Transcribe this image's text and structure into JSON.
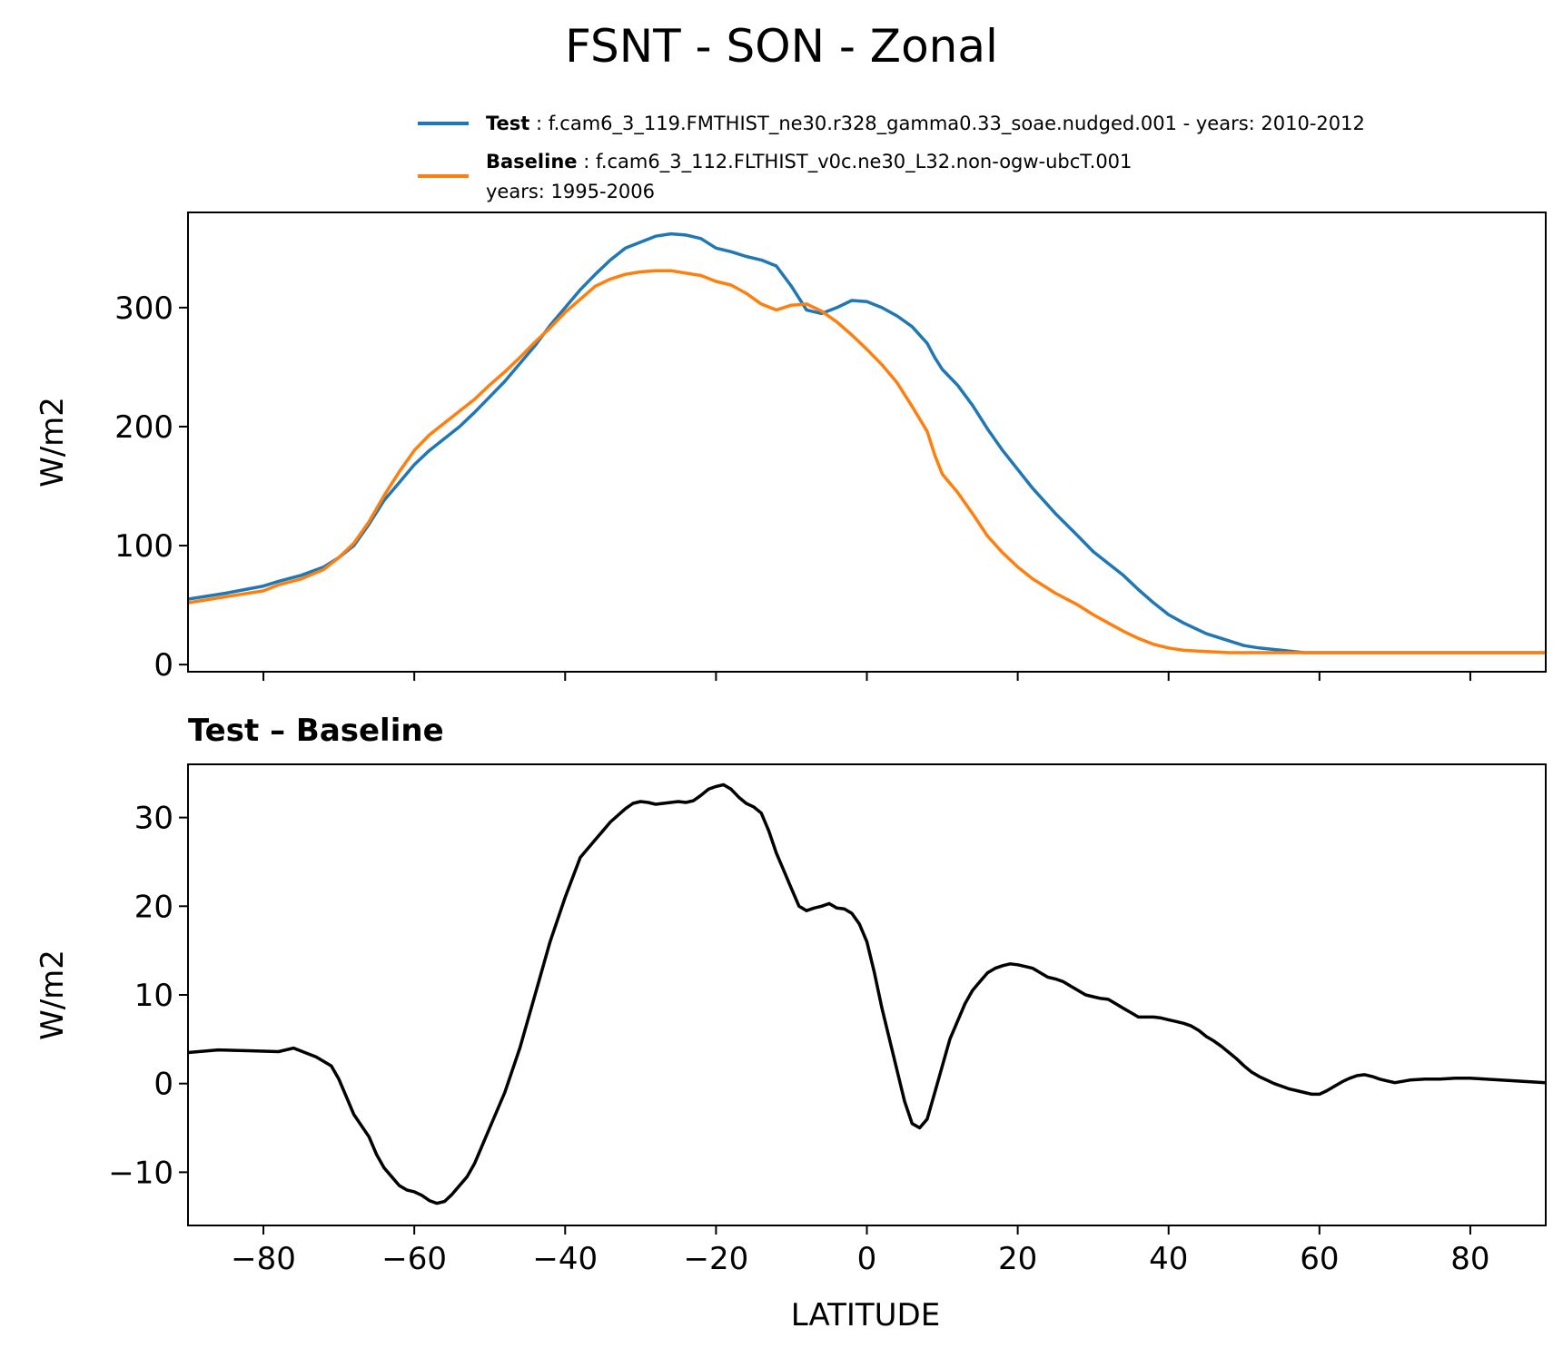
{
  "figure": {
    "title": "FSNT - SON - Zonal"
  },
  "legend": {
    "test_label": "Test",
    "test_text": ": f.cam6_3_119.FMTHIST_ne30.r328_gamma0.33_soae.nudged.001 - years: 2010-2012",
    "baseline_label": "Baseline",
    "baseline_text": ": f.cam6_3_112.FLTHIST_v0c.ne30_L32.non-ogw-ubcT.001",
    "baseline_years": "years: 1995-2006"
  },
  "colors": {
    "test": "#1f77b4",
    "baseline": "#ff7f0e",
    "diff": "#000000"
  },
  "chart_data": [
    {
      "type": "line",
      "title": "",
      "xlabel": "",
      "ylabel": "W/m2",
      "xlim": [
        -90,
        90
      ],
      "ylim": [
        -6,
        380
      ],
      "xticks": [
        -80,
        -60,
        -40,
        -20,
        0,
        20,
        40,
        60,
        80
      ],
      "show_xtick_labels": false,
      "yticks": [
        0,
        100,
        200,
        300
      ],
      "ytick_labels": [
        "0",
        "100",
        "200",
        "300"
      ],
      "series": [
        {
          "name": "Test",
          "color": "#1f77b4",
          "x": [
            -90,
            -85,
            -80,
            -78,
            -75,
            -72,
            -70,
            -68,
            -66,
            -64,
            -62,
            -60,
            -58,
            -56,
            -54,
            -52,
            -50,
            -48,
            -46,
            -44,
            -42,
            -40,
            -38,
            -36,
            -34,
            -32,
            -30,
            -28,
            -26,
            -24,
            -22,
            -20,
            -18,
            -16,
            -14,
            -12,
            -10,
            -8,
            -6,
            -4,
            -2,
            0,
            2,
            4,
            6,
            8,
            9,
            10,
            12,
            14,
            16,
            18,
            20,
            22,
            25,
            28,
            30,
            32,
            34,
            36,
            38,
            40,
            42,
            45,
            48,
            50,
            52,
            55,
            58,
            60,
            62,
            65,
            68,
            70,
            72,
            75,
            78,
            80,
            82,
            85,
            88,
            90
          ],
          "values": [
            55,
            60,
            66,
            70,
            75,
            82,
            90,
            100,
            118,
            138,
            153,
            168,
            180,
            190,
            200,
            212,
            225,
            238,
            253,
            268,
            285,
            300,
            315,
            328,
            340,
            350,
            355,
            360,
            362,
            361,
            358,
            350,
            347,
            343,
            340,
            335,
            318,
            298,
            295,
            300,
            306,
            305,
            300,
            293,
            284,
            270,
            258,
            248,
            235,
            218,
            198,
            180,
            164,
            148,
            127,
            108,
            95,
            85,
            75,
            63,
            52,
            42,
            35,
            26,
            20,
            16,
            14,
            12,
            10,
            10,
            10,
            10,
            10,
            10,
            10,
            10,
            10,
            10,
            10,
            10,
            10,
            10
          ]
        },
        {
          "name": "Baseline",
          "color": "#ff7f0e",
          "x": [
            -90,
            -85,
            -80,
            -78,
            -75,
            -72,
            -70,
            -68,
            -66,
            -64,
            -62,
            -60,
            -58,
            -56,
            -54,
            -52,
            -50,
            -48,
            -46,
            -44,
            -42,
            -40,
            -38,
            -36,
            -34,
            -32,
            -30,
            -28,
            -26,
            -24,
            -22,
            -20,
            -18,
            -16,
            -14,
            -12,
            -10,
            -8,
            -6,
            -4,
            -2,
            0,
            2,
            4,
            6,
            8,
            9,
            10,
            12,
            14,
            16,
            18,
            20,
            22,
            25,
            28,
            30,
            32,
            34,
            36,
            38,
            40,
            42,
            45,
            48,
            50,
            52,
            55,
            58,
            60,
            62,
            65,
            68,
            70,
            72,
            75,
            78,
            80,
            82,
            85,
            88,
            90
          ],
          "values": [
            52,
            57,
            62,
            67,
            72,
            80,
            90,
            102,
            120,
            142,
            162,
            180,
            193,
            203,
            213,
            223,
            235,
            246,
            258,
            271,
            283,
            296,
            307,
            318,
            324,
            328,
            330,
            331,
            331,
            329,
            327,
            322,
            319,
            312,
            303,
            298,
            302,
            303,
            297,
            288,
            277,
            265,
            252,
            237,
            217,
            196,
            176,
            160,
            145,
            127,
            108,
            94,
            82,
            72,
            60,
            50,
            42,
            35,
            28,
            22,
            17,
            14,
            12,
            11,
            10,
            10,
            10,
            10,
            10,
            10,
            10,
            10,
            10,
            10,
            10,
            10,
            10,
            10,
            10,
            10,
            10,
            10
          ]
        }
      ]
    },
    {
      "type": "line",
      "title": "Test – Baseline",
      "xlabel": "LATITUDE",
      "ylabel": "W/m2",
      "xlim": [
        -90,
        90
      ],
      "ylim": [
        -16,
        36
      ],
      "xticks": [
        -80,
        -60,
        -40,
        -20,
        0,
        20,
        40,
        60,
        80
      ],
      "xtick_labels": [
        "−80",
        "−60",
        "−40",
        "−20",
        "0",
        "20",
        "40",
        "60",
        "80"
      ],
      "show_xtick_labels": true,
      "yticks": [
        -10,
        0,
        10,
        20,
        30
      ],
      "ytick_labels": [
        "−10",
        "0",
        "10",
        "20",
        "30"
      ],
      "series": [
        {
          "name": "Test − Baseline",
          "color": "#000000",
          "x": [
            -90,
            -86,
            -82,
            -78,
            -76,
            -73,
            -71,
            -70,
            -69,
            -68,
            -66,
            -65,
            -64,
            -63,
            -62,
            -61,
            -60,
            -59,
            -58,
            -57,
            -56,
            -55,
            -54,
            -53,
            -52,
            -51,
            -50,
            -49,
            -48,
            -46,
            -44,
            -42,
            -40,
            -38,
            -36,
            -35,
            -34,
            -32,
            -31,
            -30,
            -29,
            -28,
            -27,
            -26,
            -25,
            -24,
            -23,
            -22,
            -21,
            -20,
            -19,
            -18,
            -17,
            -16,
            -15,
            -14,
            -13,
            -12,
            -11,
            -10,
            -9,
            -8,
            -7,
            -6,
            -5,
            -4,
            -3,
            -2,
            -1,
            0,
            1,
            2,
            3,
            4,
            5,
            6,
            7,
            8,
            9,
            10,
            11,
            12,
            13,
            14,
            15,
            16,
            17,
            18,
            19,
            20,
            21,
            22,
            23,
            24,
            25,
            26,
            27,
            28,
            29,
            30,
            31,
            32,
            33,
            34,
            35,
            36,
            37,
            38,
            39,
            40,
            41,
            42,
            43,
            44,
            45,
            46,
            47,
            48,
            49,
            50,
            51,
            52,
            53,
            54,
            55,
            56,
            57,
            58,
            59,
            60,
            61,
            62,
            63,
            64,
            65,
            66,
            67,
            68,
            69,
            70,
            72,
            74,
            76,
            78,
            80,
            82,
            84,
            86,
            88,
            90
          ],
          "values": [
            3.5,
            3.8,
            3.7,
            3.6,
            4.0,
            3.0,
            2.0,
            0.5,
            -1.5,
            -3.5,
            -6.0,
            -8.0,
            -9.5,
            -10.5,
            -11.5,
            -12.0,
            -12.2,
            -12.6,
            -13.2,
            -13.5,
            -13.3,
            -12.5,
            -11.5,
            -10.5,
            -9.0,
            -7.0,
            -5.0,
            -3.0,
            -1.0,
            4.0,
            10.0,
            16.0,
            21.0,
            25.5,
            27.5,
            28.5,
            29.5,
            31.0,
            31.6,
            31.8,
            31.7,
            31.5,
            31.6,
            31.7,
            31.8,
            31.7,
            31.9,
            32.5,
            33.2,
            33.5,
            33.7,
            33.2,
            32.3,
            31.6,
            31.2,
            30.5,
            28.5,
            26.0,
            24.0,
            22.0,
            20.0,
            19.5,
            19.8,
            20.0,
            20.3,
            19.8,
            19.7,
            19.2,
            18.0,
            16.0,
            12.5,
            8.5,
            5.0,
            1.5,
            -2.0,
            -4.5,
            -5.0,
            -4.0,
            -1.0,
            2.0,
            5.0,
            7.0,
            9.0,
            10.5,
            11.5,
            12.5,
            13.0,
            13.3,
            13.5,
            13.4,
            13.2,
            13.0,
            12.5,
            12.0,
            11.8,
            11.5,
            11.0,
            10.5,
            10.0,
            9.8,
            9.6,
            9.5,
            9.0,
            8.5,
            8.0,
            7.5,
            7.5,
            7.5,
            7.4,
            7.2,
            7.0,
            6.8,
            6.5,
            6.0,
            5.3,
            4.8,
            4.2,
            3.5,
            2.8,
            2.0,
            1.3,
            0.8,
            0.4,
            0.0,
            -0.3,
            -0.6,
            -0.8,
            -1.0,
            -1.2,
            -1.2,
            -0.8,
            -0.3,
            0.2,
            0.6,
            0.9,
            1.0,
            0.8,
            0.5,
            0.3,
            0.1,
            0.4,
            0.5,
            0.5,
            0.6,
            0.6,
            0.5,
            0.4,
            0.3,
            0.2,
            0.1
          ]
        }
      ]
    }
  ]
}
